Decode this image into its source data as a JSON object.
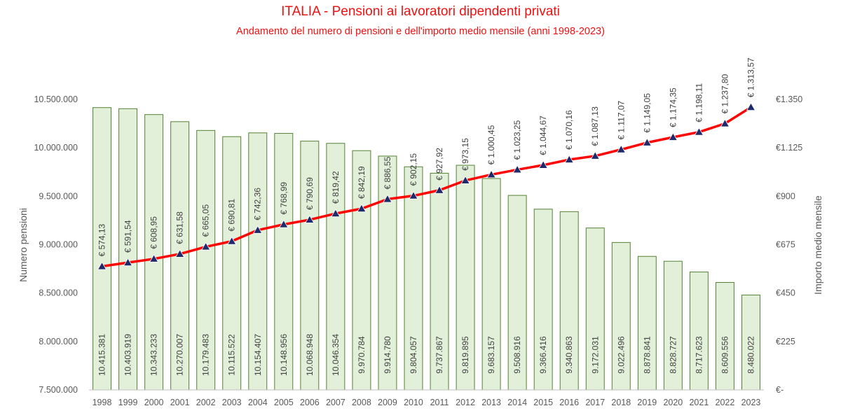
{
  "chart_data": {
    "type": "bar+line",
    "title": "ITALIA - Pensioni ai lavoratori dipendenti privati",
    "subtitle": "Andamento del numero di pensioni e dell'importo medio mensile (anni 1998-2023)",
    "categories": [
      "1998",
      "1999",
      "2000",
      "2001",
      "2002",
      "2003",
      "2004",
      "2005",
      "2006",
      "2007",
      "2008",
      "2009",
      "2010",
      "2011",
      "2012",
      "2013",
      "2014",
      "2015",
      "2016",
      "2017",
      "2018",
      "2019",
      "2020",
      "2021",
      "2022",
      "2023"
    ],
    "series": [
      {
        "type": "bar",
        "axis": "left",
        "values": [
          10415381,
          10403919,
          10343233,
          10270007,
          10179483,
          10115522,
          10154407,
          10148956,
          10068948,
          10046354,
          9970784,
          9914780,
          9804057,
          9737867,
          9819895,
          9683157,
          9508916,
          9366416,
          9340863,
          9172031,
          9022496,
          8878841,
          8828727,
          8717623,
          8609556,
          8480022
        ],
        "labels": [
          "10.415.381",
          "10.403.919",
          "10.343.233",
          "10.270.007",
          "10.179.483",
          "10.115.522",
          "10.154.407",
          "10.148.956",
          "10.068.948",
          "10.046.354",
          "9.970.784",
          "9.914.780",
          "9.804.057",
          "9.737.867",
          "9.819.895",
          "9.683.157",
          "9.508.916",
          "9.366.416",
          "9.340.863",
          "9.172.031",
          "9.022.496",
          "8.878.841",
          "8.828.727",
          "8.717.623",
          "8.609.556",
          "8.480.022"
        ]
      },
      {
        "type": "line",
        "axis": "right",
        "values": [
          574.13,
          591.54,
          608.95,
          631.58,
          665.05,
          690.81,
          742.36,
          768.99,
          790.69,
          819.42,
          842.19,
          886.55,
          902.15,
          927.92,
          973.15,
          1000.45,
          1023.25,
          1044.67,
          1070.16,
          1087.13,
          1117.07,
          1149.05,
          1174.35,
          1198.11,
          1237.8,
          1313.57
        ],
        "labels": [
          "€ 574,13",
          "€ 591,54",
          "€ 608,95",
          "€ 631,58",
          "€ 665,05",
          "€ 690,81",
          "€ 742,36",
          "€ 768,99",
          "€ 790,69",
          "€ 819,42",
          "€ 842,19",
          "€ 886,55",
          "€ 902,15",
          "€ 927,92",
          "€ 973,15",
          "€ 1.000,45",
          "€ 1.023,25",
          "€ 1.044,67",
          "€ 1.070,16",
          "€ 1.087,13",
          "€ 1.117,07",
          "€ 1.149,05",
          "€ 1.174,35",
          "€ 1.198,11",
          "€ 1.237,80",
          "€ 1.313,57"
        ]
      }
    ],
    "ylabel": "Numero pensioni",
    "ylabel_right": "Importo medio mensile",
    "ylim": [
      7500000,
      10500000
    ],
    "ylim_right": [
      0,
      1350
    ],
    "yticks": [
      7500000,
      8000000,
      8500000,
      9000000,
      9500000,
      10000000,
      10500000
    ],
    "ytick_labels": [
      "7.500.000",
      "8.000.000",
      "8.500.000",
      "9.000.000",
      "9.500.000",
      "10.000.000",
      "10.500.000"
    ],
    "yticks_right": [
      0,
      225,
      450,
      675,
      900,
      1125,
      1350
    ],
    "ytick_labels_right": [
      "€-",
      "€225",
      "€450",
      "€675",
      "€900",
      "€1.125",
      "€1.350"
    ],
    "grid": false,
    "colors": {
      "bar_fill": "#e2efd9",
      "bar_stroke": "#548235",
      "line": "#ff0000",
      "marker": "#1f2a6b",
      "title": "#ee1111",
      "text": "#595959"
    }
  }
}
